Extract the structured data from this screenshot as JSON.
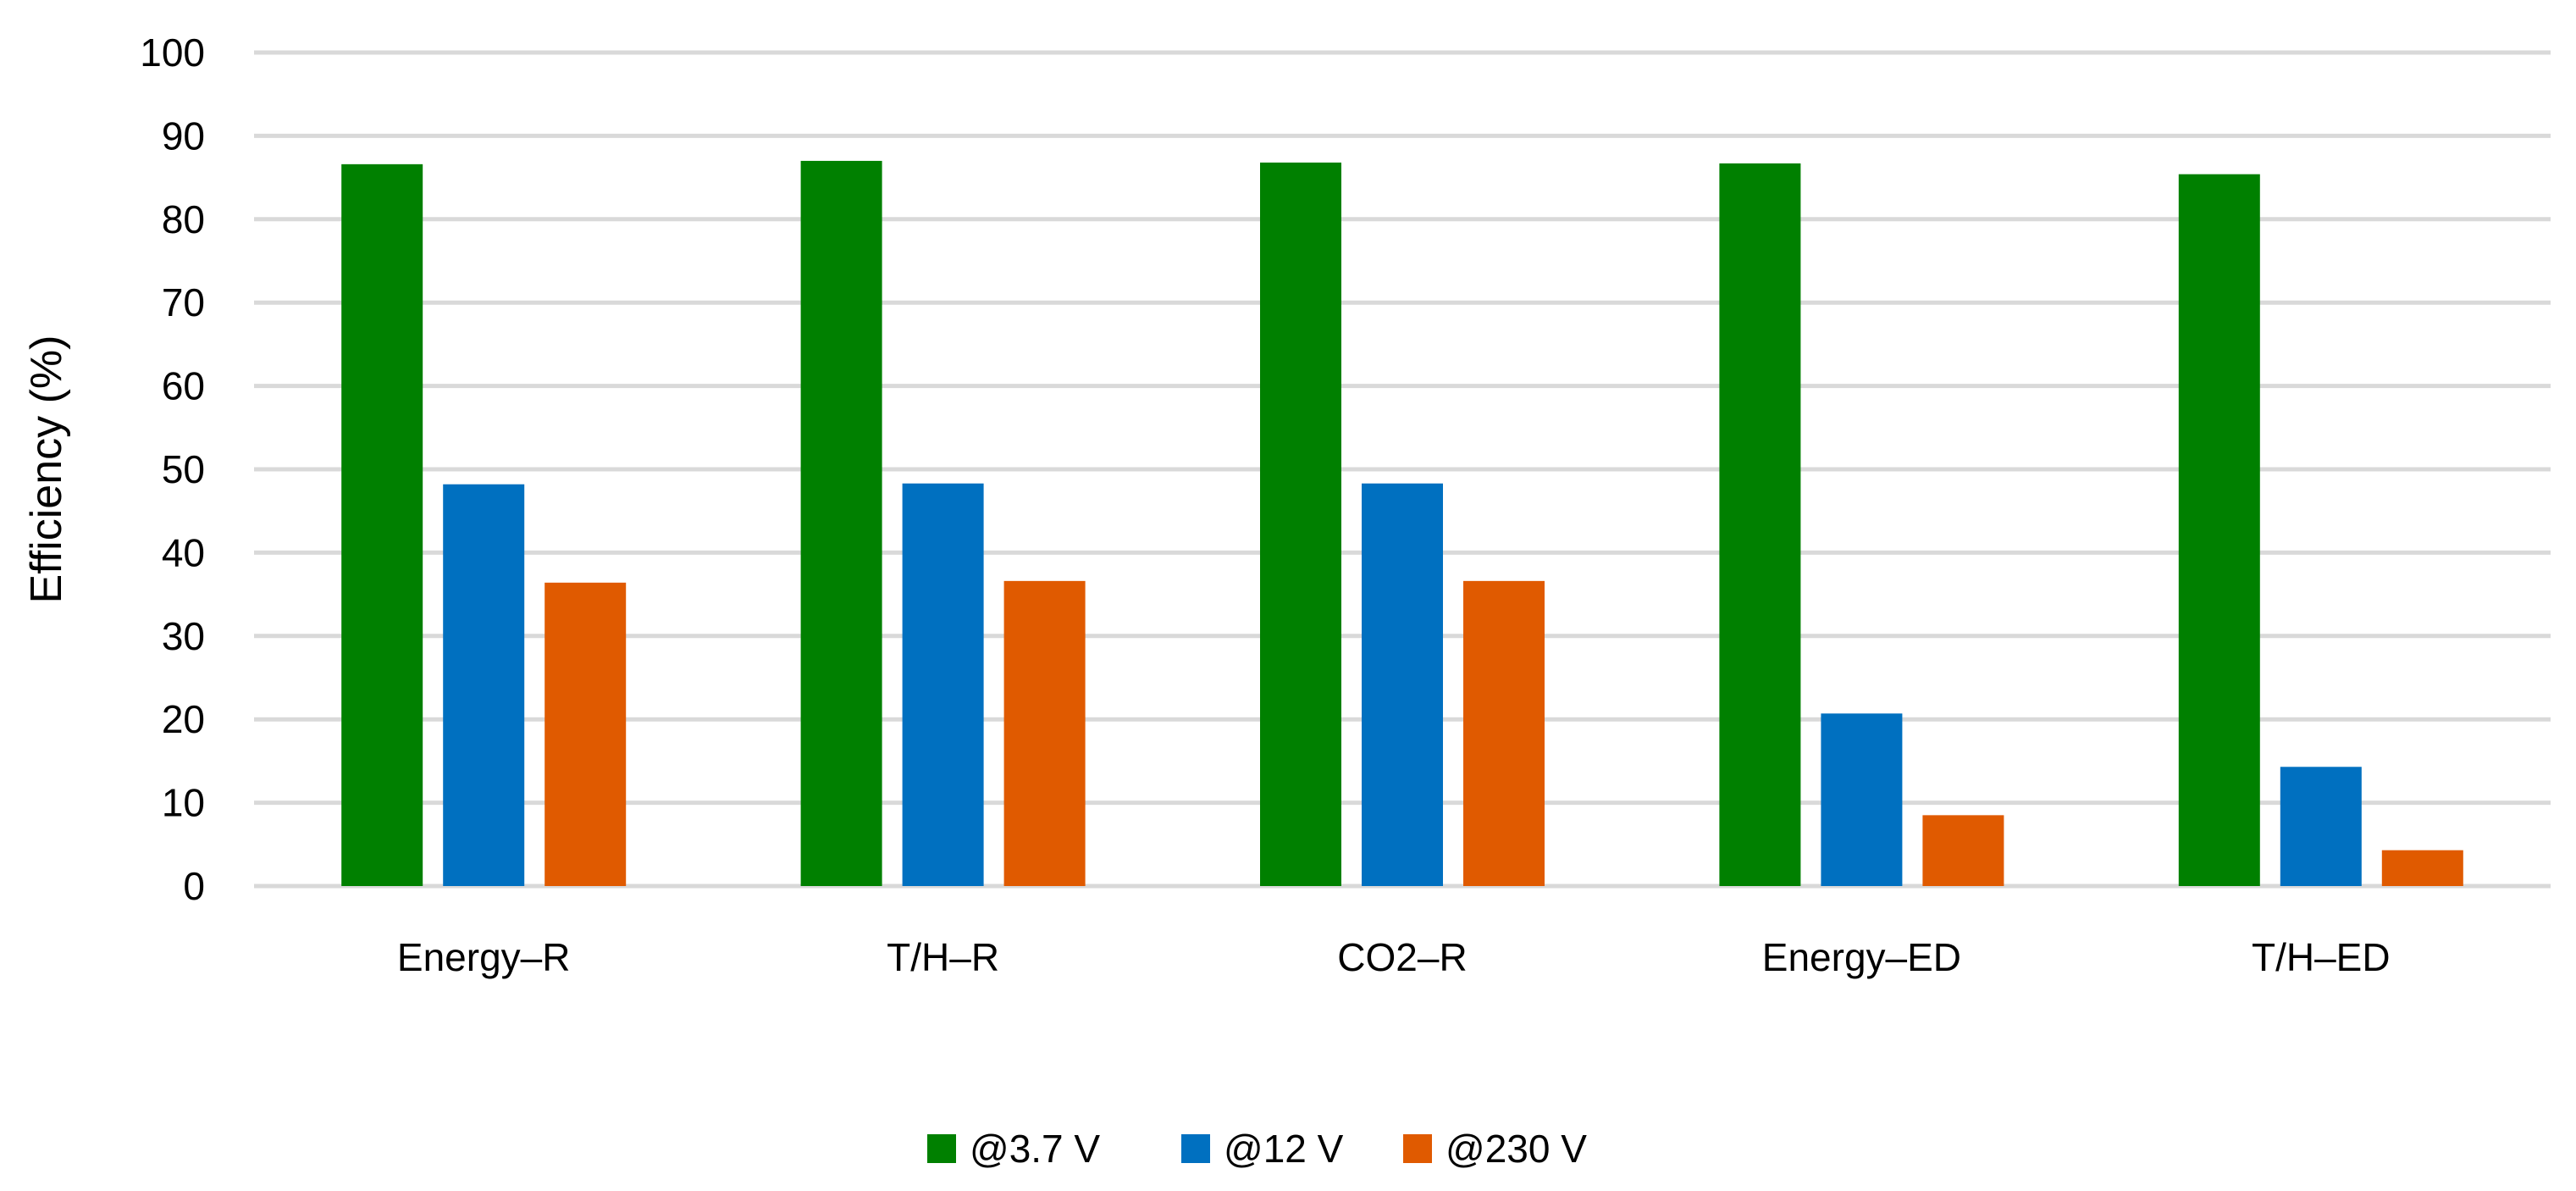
{
  "chart_data": {
    "type": "bar",
    "title": "",
    "xlabel": "",
    "ylabel": "Efficiency (%)",
    "ylim": [
      0,
      100
    ],
    "yticks": [
      0,
      10,
      20,
      30,
      40,
      50,
      60,
      70,
      80,
      90,
      100
    ],
    "grid": true,
    "legend_position": "bottom",
    "categories": [
      "Energy–R",
      "T/H–R",
      "CO2–R",
      "Energy–ED",
      "T/H–ED"
    ],
    "series": [
      {
        "name": "@3.7 V",
        "color": "#008000",
        "values": [
          86.6,
          87.0,
          86.8,
          86.7,
          85.4
        ]
      },
      {
        "name": "@12 V",
        "color": "#0070C0",
        "values": [
          48.2,
          48.3,
          48.3,
          20.7,
          14.3
        ]
      },
      {
        "name": "@230 V",
        "color": "#E05A00",
        "values": [
          36.4,
          36.6,
          36.6,
          8.5,
          4.3
        ]
      }
    ]
  }
}
